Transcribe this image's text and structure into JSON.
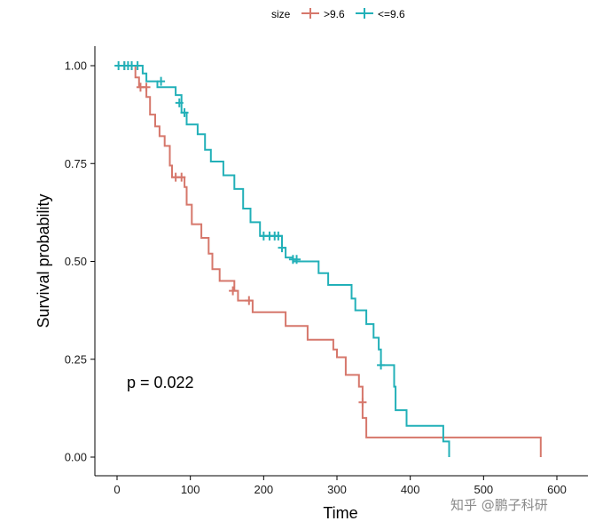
{
  "chart_data": {
    "type": "line",
    "subtype": "kaplan-meier survival curve",
    "xlabel": "Time",
    "ylabel": "Survival probability",
    "xlim": [
      -15,
      630
    ],
    "ylim": [
      0,
      1
    ],
    "x_ticks": [
      0,
      100,
      200,
      300,
      400,
      500,
      600
    ],
    "y_ticks": [
      0.0,
      0.25,
      0.5,
      0.75,
      1.0
    ],
    "y_tick_labels": [
      "0.00",
      "0.25",
      "0.50",
      "0.75",
      "1.00"
    ],
    "grid": false,
    "legend": {
      "title": "size",
      "placement": "top",
      "entries": [
        ">9.6",
        "<=9.6"
      ]
    },
    "annotation": "p = 0.022",
    "series": [
      {
        "name": ">9.6",
        "color": "#D6776B",
        "steps": [
          [
            0,
            1.0
          ],
          [
            25,
            1.0
          ],
          [
            25,
            0.97
          ],
          [
            30,
            0.97
          ],
          [
            30,
            0.945
          ],
          [
            40,
            0.945
          ],
          [
            40,
            0.92
          ],
          [
            45,
            0.92
          ],
          [
            45,
            0.875
          ],
          [
            52,
            0.875
          ],
          [
            52,
            0.845
          ],
          [
            58,
            0.845
          ],
          [
            58,
            0.82
          ],
          [
            65,
            0.82
          ],
          [
            65,
            0.795
          ],
          [
            72,
            0.795
          ],
          [
            72,
            0.745
          ],
          [
            75,
            0.745
          ],
          [
            75,
            0.715
          ],
          [
            92,
            0.715
          ],
          [
            92,
            0.69
          ],
          [
            95,
            0.69
          ],
          [
            95,
            0.645
          ],
          [
            102,
            0.645
          ],
          [
            102,
            0.595
          ],
          [
            115,
            0.595
          ],
          [
            115,
            0.56
          ],
          [
            125,
            0.56
          ],
          [
            125,
            0.52
          ],
          [
            130,
            0.52
          ],
          [
            130,
            0.48
          ],
          [
            140,
            0.48
          ],
          [
            140,
            0.45
          ],
          [
            160,
            0.45
          ],
          [
            160,
            0.425
          ],
          [
            165,
            0.425
          ],
          [
            165,
            0.4
          ],
          [
            185,
            0.4
          ],
          [
            185,
            0.37
          ],
          [
            230,
            0.37
          ],
          [
            230,
            0.335
          ],
          [
            260,
            0.335
          ],
          [
            260,
            0.3
          ],
          [
            295,
            0.3
          ],
          [
            295,
            0.275
          ],
          [
            300,
            0.275
          ],
          [
            300,
            0.255
          ],
          [
            312,
            0.255
          ],
          [
            312,
            0.21
          ],
          [
            330,
            0.21
          ],
          [
            330,
            0.18
          ],
          [
            335,
            0.18
          ],
          [
            335,
            0.1
          ],
          [
            340,
            0.1
          ],
          [
            340,
            0.05
          ],
          [
            578,
            0.05
          ],
          [
            578,
            0.0
          ]
        ],
        "censored": [
          [
            10,
            1.0
          ],
          [
            20,
            1.0
          ],
          [
            32,
            0.945
          ],
          [
            40,
            0.945
          ],
          [
            80,
            0.715
          ],
          [
            88,
            0.715
          ],
          [
            158,
            0.425
          ],
          [
            180,
            0.4
          ],
          [
            335,
            0.14
          ]
        ]
      },
      {
        "name": "<=9.6",
        "color": "#22B0B8",
        "steps": [
          [
            0,
            1.0
          ],
          [
            35,
            1.0
          ],
          [
            35,
            0.98
          ],
          [
            40,
            0.98
          ],
          [
            40,
            0.96
          ],
          [
            55,
            0.96
          ],
          [
            55,
            0.945
          ],
          [
            80,
            0.945
          ],
          [
            80,
            0.925
          ],
          [
            88,
            0.925
          ],
          [
            88,
            0.88
          ],
          [
            95,
            0.88
          ],
          [
            95,
            0.85
          ],
          [
            110,
            0.85
          ],
          [
            110,
            0.825
          ],
          [
            120,
            0.825
          ],
          [
            120,
            0.785
          ],
          [
            128,
            0.785
          ],
          [
            128,
            0.755
          ],
          [
            145,
            0.755
          ],
          [
            145,
            0.72
          ],
          [
            160,
            0.72
          ],
          [
            160,
            0.685
          ],
          [
            172,
            0.685
          ],
          [
            172,
            0.635
          ],
          [
            182,
            0.635
          ],
          [
            182,
            0.6
          ],
          [
            195,
            0.6
          ],
          [
            195,
            0.565
          ],
          [
            225,
            0.565
          ],
          [
            225,
            0.535
          ],
          [
            230,
            0.535
          ],
          [
            230,
            0.51
          ],
          [
            240,
            0.51
          ],
          [
            240,
            0.5
          ],
          [
            275,
            0.5
          ],
          [
            275,
            0.47
          ],
          [
            288,
            0.47
          ],
          [
            288,
            0.44
          ],
          [
            320,
            0.44
          ],
          [
            320,
            0.405
          ],
          [
            325,
            0.405
          ],
          [
            325,
            0.375
          ],
          [
            340,
            0.375
          ],
          [
            340,
            0.34
          ],
          [
            350,
            0.34
          ],
          [
            350,
            0.305
          ],
          [
            357,
            0.305
          ],
          [
            357,
            0.275
          ],
          [
            360,
            0.275
          ],
          [
            360,
            0.235
          ],
          [
            378,
            0.235
          ],
          [
            378,
            0.18
          ],
          [
            380,
            0.18
          ],
          [
            380,
            0.12
          ],
          [
            395,
            0.12
          ],
          [
            395,
            0.08
          ],
          [
            445,
            0.08
          ],
          [
            445,
            0.04
          ],
          [
            453,
            0.04
          ],
          [
            453,
            0.0
          ]
        ],
        "censored": [
          [
            2,
            1.0
          ],
          [
            10,
            1.0
          ],
          [
            15,
            1.0
          ],
          [
            20,
            1.0
          ],
          [
            28,
            1.0
          ],
          [
            60,
            0.96
          ],
          [
            85,
            0.905
          ],
          [
            92,
            0.88
          ],
          [
            200,
            0.565
          ],
          [
            208,
            0.565
          ],
          [
            215,
            0.565
          ],
          [
            220,
            0.565
          ],
          [
            225,
            0.535
          ],
          [
            240,
            0.505
          ],
          [
            245,
            0.505
          ],
          [
            360,
            0.235
          ]
        ]
      }
    ]
  },
  "watermark": "知乎 @鹏子科研"
}
